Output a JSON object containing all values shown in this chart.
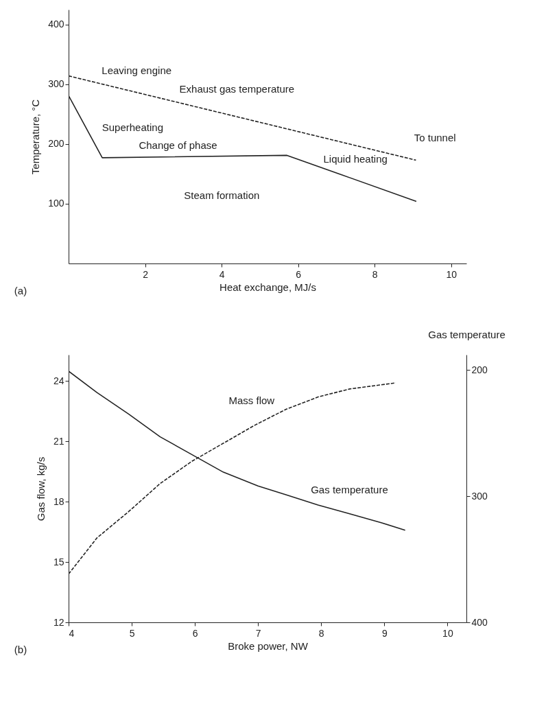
{
  "chart_data": [
    {
      "type": "line",
      "xlabel": "Heat exchange, MJ/s",
      "ylabel": "Temperature, °C",
      "xlim": [
        0,
        10.4
      ],
      "xticks": [
        2,
        4,
        6,
        8,
        10
      ],
      "ylim": [
        0,
        425
      ],
      "yticks": [
        100,
        200,
        300,
        400
      ],
      "grid": false,
      "series": [
        {
          "color": "#222222",
          "line_style": "dashed",
          "x": [
            0,
            9.08
          ],
          "values": [
            314,
            173
          ]
        },
        {
          "color": "#222222",
          "line_style": "solid",
          "x": [
            0,
            0.88,
            5.71,
            9.09
          ],
          "values": [
            281,
            177,
            181,
            104
          ]
        }
      ],
      "annotations": [
        "(a)",
        "Leaving engine",
        "Exhaust gas temperature",
        "Superheating",
        "Change of phase",
        "Steam formation",
        "Liquid heating",
        "To tunnel"
      ]
    },
    {
      "type": "line",
      "xlabel": "Broke power, NW",
      "ylabel": "Gas flow, kg/s",
      "y2label": "Gas temperature",
      "xlim": [
        4,
        10.3
      ],
      "xticks": [
        4,
        5,
        6,
        7,
        8,
        9,
        10
      ],
      "ylim": [
        12,
        25.3
      ],
      "yticks": [
        12,
        15,
        18,
        21,
        24
      ],
      "y2lim": [
        400,
        188
      ],
      "y2ticks": [
        200,
        300,
        400
      ],
      "grid": false,
      "series": [
        {
          "color": "#222222",
          "line_style": "solid",
          "axis": "y2",
          "x": [
            4.0,
            4.45,
            4.95,
            5.45,
            5.95,
            6.45,
            7.0,
            7.45,
            7.95,
            8.45,
            8.95,
            9.33
          ],
          "values": [
            201,
            218,
            235,
            253,
            267,
            281,
            292,
            299,
            307,
            314,
            321,
            327
          ]
        },
        {
          "color": "#222222",
          "line_style": "dashed",
          "x": [
            4.0,
            4.45,
            4.95,
            5.45,
            5.95,
            6.45,
            6.95,
            7.45,
            7.95,
            8.45,
            9.18
          ],
          "values": [
            14.4,
            16.2,
            17.5,
            18.9,
            20.0,
            20.9,
            21.8,
            22.6,
            23.2,
            23.6,
            23.9
          ]
        }
      ],
      "annotations": [
        "(b)",
        "Mass flow",
        "Gas temperature"
      ]
    }
  ]
}
